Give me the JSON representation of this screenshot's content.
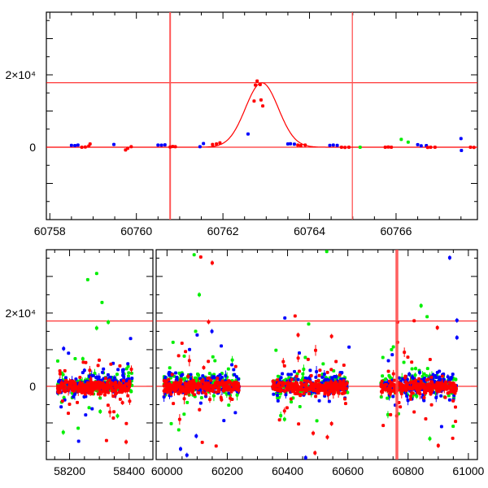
{
  "chart_data": [
    {
      "type": "scatter",
      "panel": "top",
      "xlim": [
        60757.92,
        60767.88
      ],
      "ylim": [
        -20000,
        37300
      ],
      "xticks": [
        "60758",
        "60760",
        "60762",
        "60764",
        "60766"
      ],
      "xtick_values": [
        60758,
        60760,
        60762,
        60764,
        60766
      ],
      "yticks": [
        "2×10⁴",
        "0"
      ],
      "ytick_values": [
        20000,
        0
      ],
      "hlines": [
        0,
        17800
      ],
      "vlines": [
        60760.78,
        60764.99
      ],
      "model": {
        "type": "gaussian",
        "t0": 60762.9,
        "amplitude": 17800,
        "sigma": 0.38,
        "color": "#ff0000"
      },
      "series": [
        {
          "name": "blue",
          "color": "#0000ff",
          "points": [
            [
              60758.5,
              500
            ],
            [
              60758.58,
              450
            ],
            [
              60758.65,
              600
            ],
            [
              60759.48,
              750
            ],
            [
              60760.5,
              600
            ],
            [
              60760.58,
              550
            ],
            [
              60760.66,
              650
            ],
            [
              60761.47,
              150
            ],
            [
              60761.55,
              1000
            ],
            [
              60762.58,
              3650
            ],
            [
              60763.5,
              900
            ],
            [
              60763.56,
              950
            ],
            [
              60763.65,
              850
            ],
            [
              60764.47,
              500
            ],
            [
              60764.55,
              600
            ],
            [
              60764.64,
              500
            ],
            [
              60766.5,
              700
            ],
            [
              60766.58,
              400
            ],
            [
              60766.7,
              450
            ],
            [
              60767.5,
              2400
            ],
            [
              60767.51,
              -900
            ]
          ]
        },
        {
          "name": "red",
          "color": "#ff0000",
          "points": [
            [
              60757.9,
              0
            ],
            [
              60758.74,
              0
            ],
            [
              60758.82,
              50
            ],
            [
              60758.9,
              300
            ],
            [
              60758.93,
              900
            ],
            [
              60759.75,
              -750
            ],
            [
              60759.8,
              -300
            ],
            [
              60759.88,
              150
            ],
            [
              60760.78,
              50
            ],
            [
              60760.84,
              200
            ],
            [
              60760.9,
              150
            ],
            [
              60761.76,
              750
            ],
            [
              60761.85,
              900
            ],
            [
              60761.93,
              1200
            ],
            [
              60762.72,
              12750
            ],
            [
              60762.79,
              18280
            ],
            [
              60762.75,
              17150
            ],
            [
              60762.86,
              17300
            ],
            [
              60762.88,
              13050
            ],
            [
              60762.92,
              11400
            ],
            [
              60763.73,
              600
            ],
            [
              60763.8,
              450
            ],
            [
              60763.9,
              600
            ],
            [
              60764.74,
              0
            ],
            [
              60764.82,
              -50
            ],
            [
              60764.91,
              0
            ],
            [
              60765.75,
              0
            ],
            [
              60765.82,
              50
            ],
            [
              60765.89,
              0
            ],
            [
              60766.73,
              -50
            ],
            [
              60766.8,
              0
            ],
            [
              60766.9,
              0
            ],
            [
              60767.72,
              0
            ],
            [
              60767.8,
              -50
            ],
            [
              60767.92,
              0
            ]
          ]
        },
        {
          "name": "green",
          "color": "#00ee00",
          "points": [
            [
              60765.17,
              0
            ],
            [
              60766.12,
              2160
            ],
            [
              60766.28,
              1400
            ]
          ]
        }
      ]
    },
    {
      "type": "scatter",
      "panel": "bottom",
      "broken_axis": true,
      "xlim_segments": [
        [
          58122,
          58480
        ],
        [
          59964,
          61030
        ]
      ],
      "ylim": [
        -20000,
        37300
      ],
      "xticks": [
        "58200",
        "58400",
        "60000",
        "60200",
        "60400",
        "60600",
        "60800",
        "61000"
      ],
      "xtick_values": [
        58200,
        58400,
        60000,
        60200,
        60400,
        60600,
        60800,
        61000
      ],
      "yticks": [
        "2×10⁴",
        "0"
      ],
      "ytick_values": [
        20000,
        0
      ],
      "hlines": [
        0,
        17800
      ],
      "vlines": [
        60762.8
      ],
      "seasons": [
        [
          58160,
          58410
        ],
        [
          59990,
          60240
        ],
        [
          60350,
          60600
        ],
        [
          60710,
          60960
        ]
      ],
      "season_scatter_sigma": 1500,
      "series": [
        {
          "name": "green",
          "color": "#00ee00",
          "points": [
            [
              58261,
              29100
            ],
            [
              58291,
              30800
            ],
            [
              58309,
              22900
            ],
            [
              58330,
              17500
            ],
            [
              58291,
              15900
            ],
            [
              60090,
              35900
            ],
            [
              60107,
              25000
            ],
            [
              60530,
              36800
            ],
            [
              60843,
              22000
            ],
            [
              60863,
              19000
            ],
            [
              60872,
              -14300
            ],
            [
              60014,
              -10200
            ],
            [
              60039,
              -11900
            ],
            [
              58361,
              -8100
            ],
            [
              58303,
              -6900
            ],
            [
              60470,
              17000
            ],
            [
              60390,
              -9000
            ],
            [
              60745,
              10000
            ],
            [
              60095,
              15000
            ],
            [
              60020,
              12000
            ]
          ]
        },
        {
          "name": "blue",
          "color": "#0000ff",
          "points": [
            [
              58180,
              10300
            ],
            [
              58405,
              13050
            ],
            [
              58254,
              -7800
            ],
            [
              60391,
              18650
            ],
            [
              60604,
              10700
            ],
            [
              60938,
              35100
            ],
            [
              60962,
              18000
            ],
            [
              60962,
              13300
            ],
            [
              60911,
              -11000
            ],
            [
              60045,
              -17100
            ],
            [
              60066,
              -18800
            ],
            [
              60097,
              -13600
            ],
            [
              60149,
              15000
            ],
            [
              60100,
              14000
            ],
            [
              60180,
              11000
            ],
            [
              60460,
              -19500
            ]
          ]
        },
        {
          "name": "red",
          "color": "#ff0000",
          "points": [
            [
              60112,
              35300
            ],
            [
              60150,
              33700
            ],
            [
              60138,
              17600
            ],
            [
              60425,
              19200
            ],
            [
              60546,
              13650
            ],
            [
              60820,
              17900
            ],
            [
              60897,
              16000
            ],
            [
              58324,
              -14800
            ],
            [
              58390,
              -15200
            ],
            [
              60117,
              -15300
            ],
            [
              60163,
              -16300
            ],
            [
              60485,
              -12800
            ],
            [
              60491,
              -18200
            ],
            [
              60532,
              -13900
            ],
            [
              60900,
              -16200
            ],
            [
              60948,
              -14200
            ],
            [
              60546,
              -10200
            ],
            [
              60435,
              14000
            ],
            [
              60765,
              17500
            ],
            [
              60765,
              12000
            ],
            [
              60820,
              -7000
            ]
          ]
        }
      ]
    }
  ]
}
